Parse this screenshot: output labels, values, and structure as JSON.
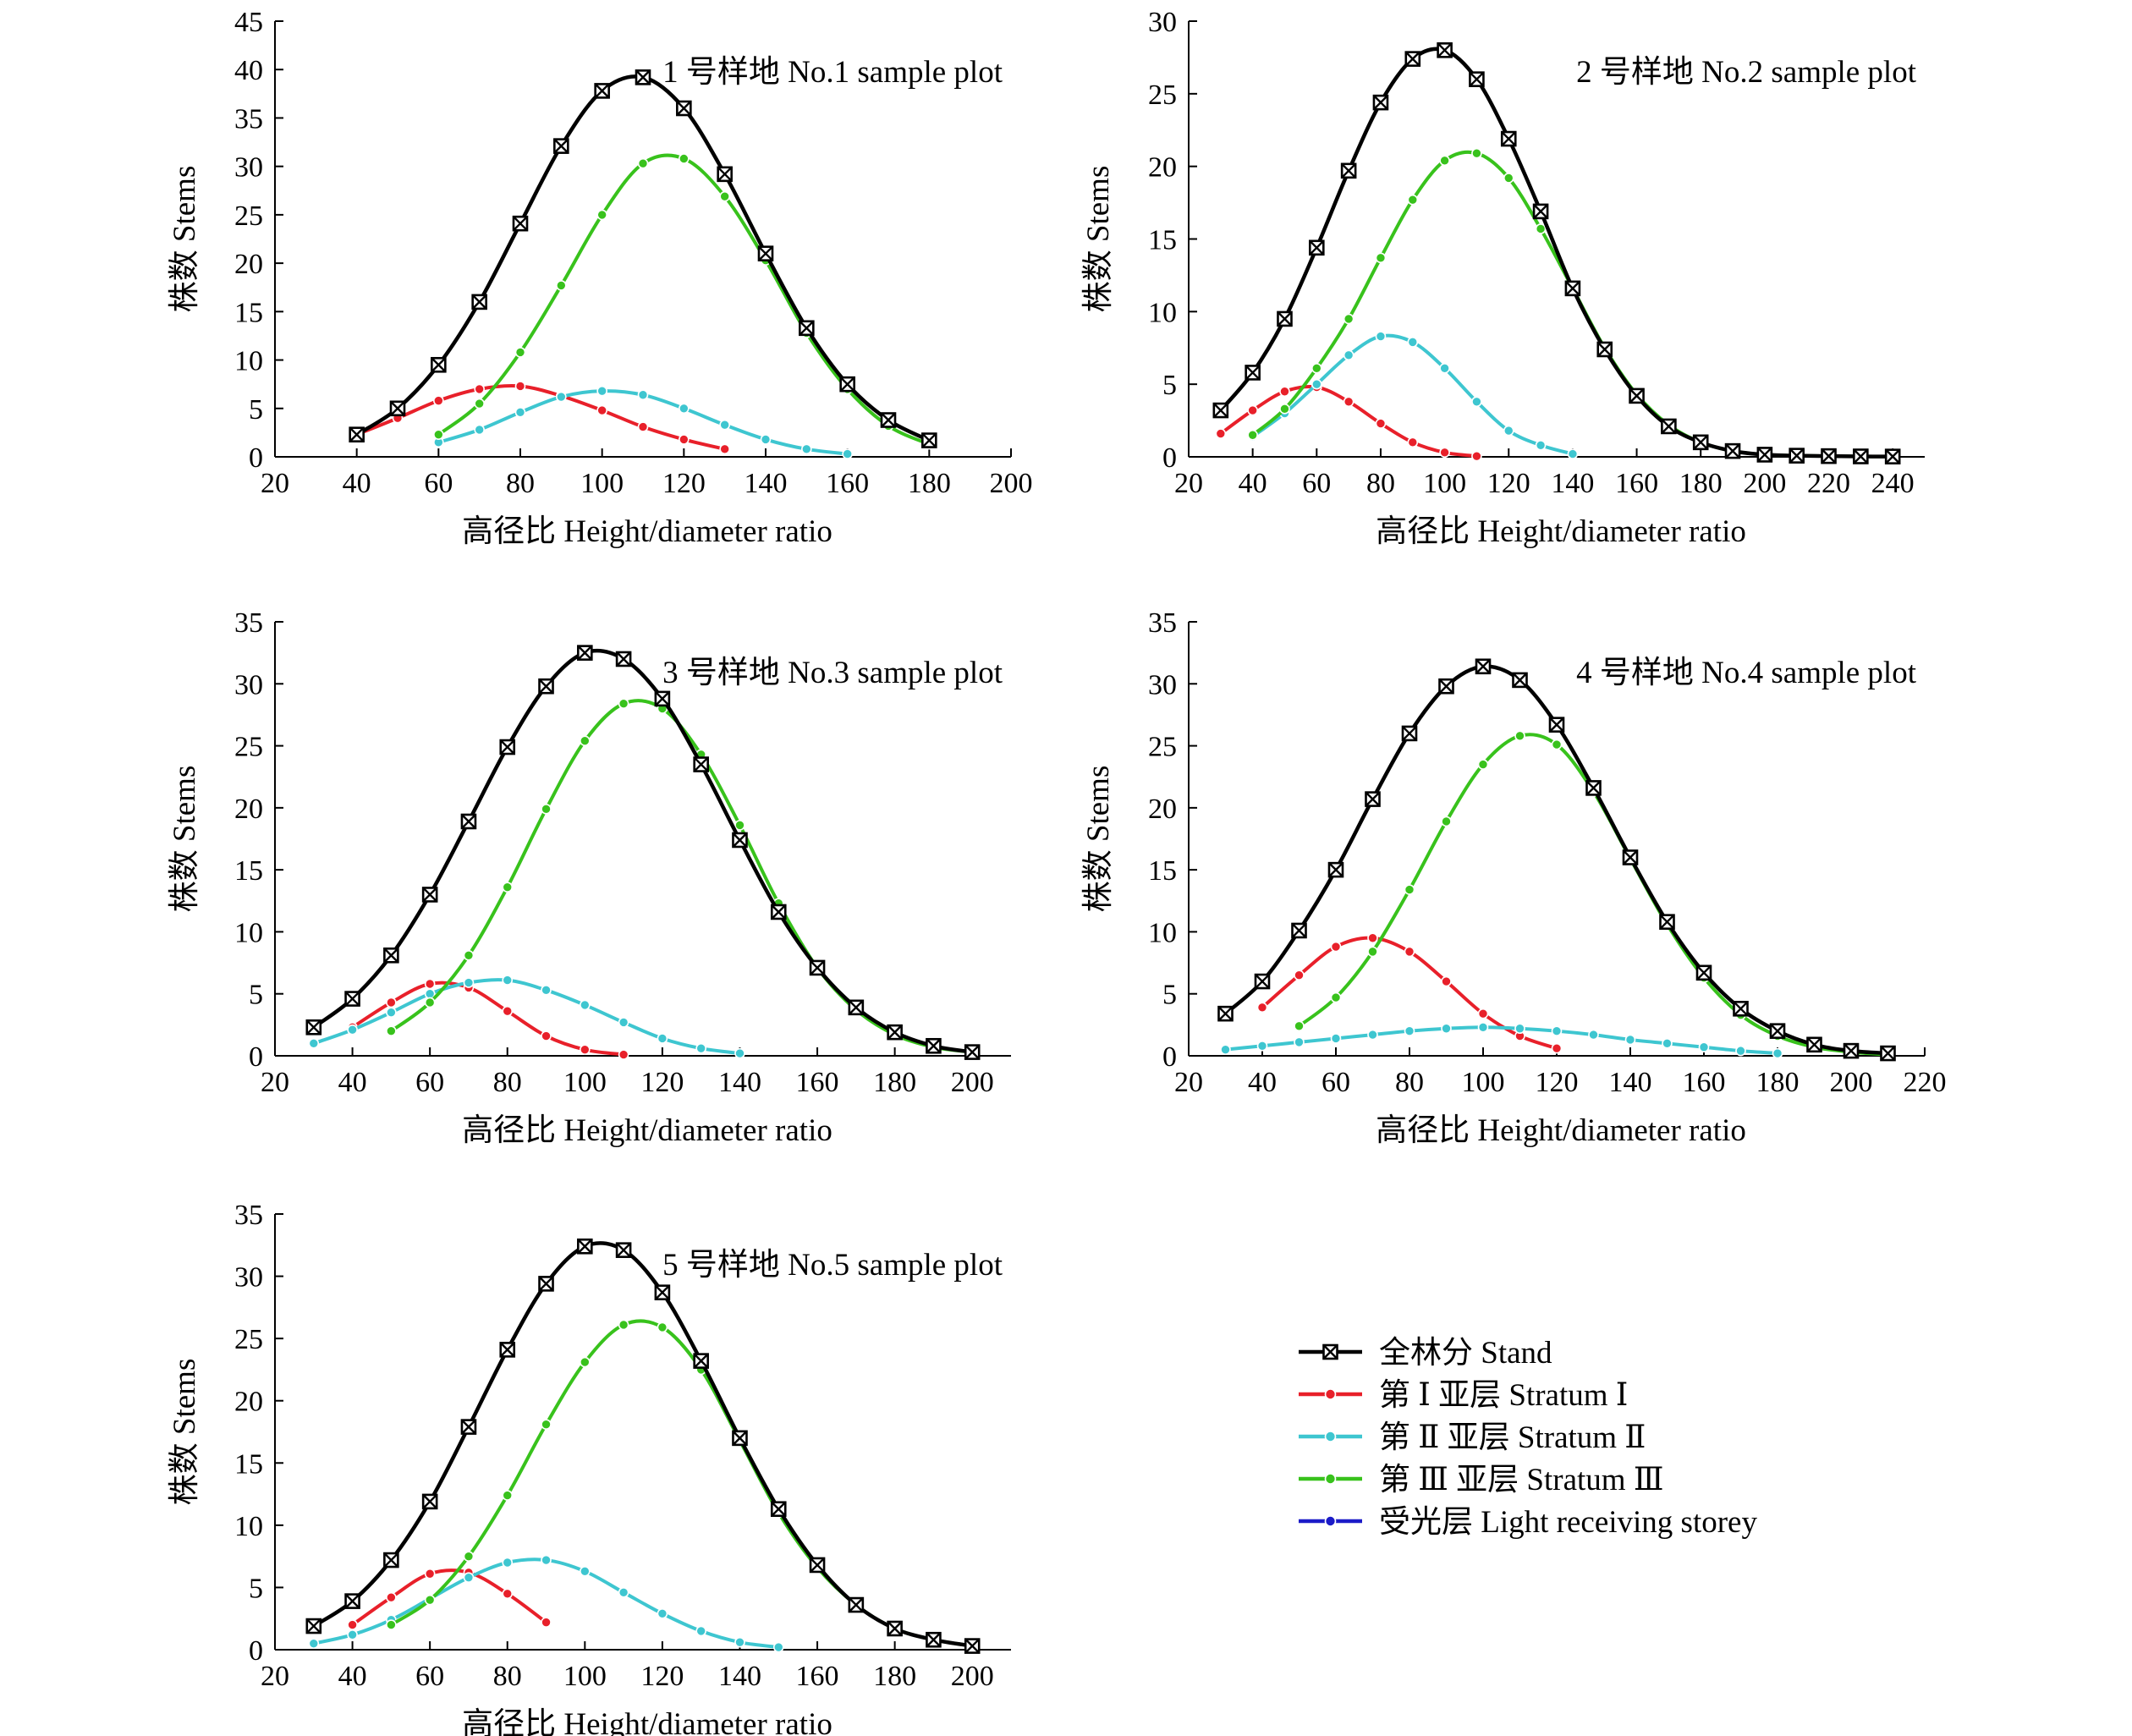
{
  "series_styles": [
    {
      "color": "#000000",
      "marker": "box-x"
    },
    {
      "color": "#e8202a",
      "marker": "dot"
    },
    {
      "color": "#3ec6d0",
      "marker": "dot"
    },
    {
      "color": "#38c21c",
      "marker": "dot"
    },
    {
      "color": "#1c1cc8",
      "marker": "dot"
    }
  ],
  "legend": {
    "placement": "bottom-right",
    "items": [
      "全林分 Stand",
      "第 Ⅰ 亚层 Stratum Ⅰ",
      "第 Ⅱ 亚层 Stratum Ⅱ",
      "第 Ⅲ 亚层 Stratum Ⅲ",
      "受光层 Light receiving storey"
    ]
  },
  "chart_data": [
    {
      "type": "line",
      "title": "1 号样地 No.1 sample plot",
      "xlabel": "高径比 Height/diameter ratio",
      "ylabel": "株数 Stems",
      "xlim": [
        20,
        200
      ],
      "ylim": [
        0,
        45
      ],
      "xticks": [
        20,
        40,
        60,
        80,
        100,
        120,
        140,
        160,
        180,
        200
      ],
      "yticks": [
        0,
        5,
        10,
        15,
        20,
        25,
        30,
        35,
        40,
        45
      ],
      "grid": false,
      "series": [
        {
          "x": [
            40,
            50,
            60,
            70,
            80,
            90,
            100,
            110,
            120,
            130,
            140,
            150,
            160,
            170,
            180
          ],
          "y": [
            2.3,
            5.0,
            9.5,
            16.0,
            24.1,
            32.1,
            37.8,
            39.2,
            36.0,
            29.2,
            21.0,
            13.3,
            7.5,
            3.8,
            1.7
          ]
        },
        {
          "x": [
            40,
            50,
            60,
            70,
            80,
            90,
            100,
            110,
            120,
            130
          ],
          "y": [
            2.3,
            4.0,
            5.8,
            7.0,
            7.3,
            6.3,
            4.8,
            3.1,
            1.8,
            0.8
          ]
        },
        {
          "x": [
            60,
            70,
            80,
            90,
            100,
            110,
            120,
            130,
            140,
            150,
            160
          ],
          "y": [
            1.5,
            2.8,
            4.6,
            6.2,
            6.8,
            6.4,
            5.0,
            3.3,
            1.8,
            0.8,
            0.3
          ]
        },
        {
          "x": [
            60,
            70,
            80,
            90,
            100,
            110,
            120,
            130,
            140,
            150,
            160,
            170,
            180
          ],
          "y": [
            2.3,
            5.5,
            10.8,
            17.7,
            25.0,
            30.3,
            30.8,
            26.9,
            20.3,
            12.8,
            7.0,
            3.2,
            1.3
          ]
        }
      ]
    },
    {
      "type": "line",
      "title": "2 号样地 No.2 sample plot",
      "xlabel": "高径比 Height/diameter ratio",
      "ylabel": "株数 Stems",
      "xlim": [
        20,
        250
      ],
      "ylim": [
        0,
        30
      ],
      "xticks": [
        20,
        40,
        60,
        80,
        100,
        120,
        140,
        160,
        180,
        200,
        220,
        240
      ],
      "yticks": [
        0,
        5,
        10,
        15,
        20,
        25,
        30
      ],
      "grid": false,
      "series": [
        {
          "x": [
            30,
            40,
            50,
            60,
            70,
            80,
            90,
            100,
            110,
            120,
            130,
            140,
            150,
            160,
            170,
            180,
            190,
            200,
            210,
            220,
            230,
            240
          ],
          "y": [
            3.2,
            5.8,
            9.5,
            14.4,
            19.7,
            24.4,
            27.4,
            28.0,
            26.0,
            21.9,
            16.9,
            11.6,
            7.4,
            4.2,
            2.1,
            1.0,
            0.4,
            0.15,
            0.08,
            0.05,
            0.03,
            0.02
          ]
        },
        {
          "x": [
            30,
            40,
            50,
            60,
            70,
            80,
            90,
            100,
            110
          ],
          "y": [
            1.6,
            3.2,
            4.5,
            4.8,
            3.8,
            2.3,
            1.0,
            0.3,
            0.05
          ]
        },
        {
          "x": [
            40,
            50,
            60,
            70,
            80,
            90,
            100,
            110,
            120,
            130,
            140
          ],
          "y": [
            1.4,
            3.0,
            5.0,
            7.0,
            8.3,
            7.9,
            6.1,
            3.8,
            1.8,
            0.8,
            0.2
          ]
        },
        {
          "x": [
            40,
            50,
            60,
            70,
            80,
            90,
            100,
            110,
            120,
            130,
            140,
            150,
            160,
            170,
            180,
            190,
            200,
            210,
            220,
            230,
            240
          ],
          "y": [
            1.5,
            3.3,
            6.1,
            9.5,
            13.7,
            17.7,
            20.4,
            20.9,
            19.2,
            15.7,
            11.6,
            7.5,
            4.3,
            2.2,
            1.0,
            0.4,
            0.15,
            0.08,
            0.05,
            0.03,
            0.02
          ]
        }
      ]
    },
    {
      "type": "line",
      "title": "3 号样地 No.3 sample plot",
      "xlabel": "高径比 Height/diameter ratio",
      "ylabel": "株数 Stems",
      "xlim": [
        20,
        210
      ],
      "ylim": [
        0,
        35
      ],
      "xticks": [
        20,
        40,
        60,
        80,
        100,
        120,
        140,
        160,
        180,
        200
      ],
      "yticks": [
        0,
        5,
        10,
        15,
        20,
        25,
        30,
        35
      ],
      "grid": false,
      "series": [
        {
          "x": [
            30,
            40,
            50,
            60,
            70,
            80,
            90,
            100,
            110,
            120,
            130,
            140,
            150,
            160,
            170,
            180,
            190,
            200
          ],
          "y": [
            2.3,
            4.6,
            8.1,
            13.0,
            18.9,
            24.9,
            29.8,
            32.5,
            32.0,
            28.8,
            23.5,
            17.4,
            11.6,
            7.1,
            3.9,
            1.9,
            0.8,
            0.3
          ]
        },
        {
          "x": [
            40,
            50,
            60,
            70,
            80,
            90,
            100,
            110
          ],
          "y": [
            2.3,
            4.3,
            5.8,
            5.5,
            3.6,
            1.6,
            0.5,
            0.1
          ]
        },
        {
          "x": [
            30,
            40,
            50,
            60,
            70,
            80,
            90,
            100,
            110,
            120,
            130,
            140
          ],
          "y": [
            1.0,
            2.1,
            3.5,
            5.0,
            5.9,
            6.1,
            5.3,
            4.1,
            2.7,
            1.4,
            0.6,
            0.2
          ]
        },
        {
          "x": [
            50,
            60,
            70,
            80,
            90,
            100,
            110,
            120,
            130,
            140,
            150,
            160,
            170,
            180,
            190,
            200
          ],
          "y": [
            2.0,
            4.3,
            8.1,
            13.6,
            19.9,
            25.4,
            28.4,
            28.0,
            24.3,
            18.6,
            12.3,
            7.1,
            3.7,
            1.7,
            0.7,
            0.3
          ]
        }
      ]
    },
    {
      "type": "line",
      "title": "4 号样地 No.4 sample plot",
      "xlabel": "高径比 Height/diameter ratio",
      "ylabel": "株数 Stems",
      "xlim": [
        20,
        220
      ],
      "ylim": [
        0,
        35
      ],
      "xticks": [
        20,
        40,
        60,
        80,
        100,
        120,
        140,
        160,
        180,
        200,
        220
      ],
      "yticks": [
        0,
        5,
        10,
        15,
        20,
        25,
        30,
        35
      ],
      "grid": false,
      "series": [
        {
          "x": [
            30,
            40,
            50,
            60,
            70,
            80,
            90,
            100,
            110,
            120,
            130,
            140,
            150,
            160,
            170,
            180,
            190,
            200,
            210
          ],
          "y": [
            3.4,
            6.0,
            10.1,
            15.0,
            20.7,
            26.0,
            29.8,
            31.4,
            30.3,
            26.7,
            21.6,
            16.0,
            10.8,
            6.7,
            3.8,
            2.0,
            0.9,
            0.4,
            0.2
          ]
        },
        {
          "x": [
            40,
            50,
            60,
            70,
            80,
            90,
            100,
            110,
            120
          ],
          "y": [
            3.9,
            6.5,
            8.8,
            9.5,
            8.4,
            6.0,
            3.4,
            1.6,
            0.6
          ]
        },
        {
          "x": [
            30,
            40,
            50,
            60,
            70,
            80,
            90,
            100,
            110,
            120,
            130,
            140,
            150,
            160,
            170,
            180
          ],
          "y": [
            0.5,
            0.8,
            1.1,
            1.4,
            1.7,
            2.0,
            2.2,
            2.3,
            2.2,
            2.0,
            1.7,
            1.3,
            1.0,
            0.7,
            0.4,
            0.2
          ]
        },
        {
          "x": [
            50,
            60,
            70,
            80,
            90,
            100,
            110,
            120,
            130,
            140,
            150,
            160,
            170,
            180,
            190,
            200,
            210
          ],
          "y": [
            2.4,
            4.7,
            8.4,
            13.4,
            18.9,
            23.5,
            25.8,
            25.1,
            21.3,
            15.9,
            10.6,
            6.3,
            3.3,
            1.6,
            0.7,
            0.3,
            0.1
          ]
        }
      ]
    },
    {
      "type": "line",
      "title": "5 号样地 No.5 sample plot",
      "xlabel": "高径比 Height/diameter ratio",
      "ylabel": "株数 Stems",
      "xlim": [
        20,
        210
      ],
      "ylim": [
        0,
        35
      ],
      "xticks": [
        20,
        40,
        60,
        80,
        100,
        120,
        140,
        160,
        180,
        200
      ],
      "yticks": [
        0,
        5,
        10,
        15,
        20,
        25,
        30,
        35
      ],
      "grid": false,
      "series": [
        {
          "x": [
            30,
            40,
            50,
            60,
            70,
            80,
            90,
            100,
            110,
            120,
            130,
            140,
            150,
            160,
            170,
            180,
            190,
            200
          ],
          "y": [
            1.9,
            3.9,
            7.2,
            11.9,
            17.9,
            24.1,
            29.4,
            32.4,
            32.1,
            28.7,
            23.2,
            17.0,
            11.3,
            6.8,
            3.6,
            1.7,
            0.8,
            0.3
          ]
        },
        {
          "x": [
            40,
            50,
            60,
            70,
            80,
            90
          ],
          "y": [
            2.0,
            4.2,
            6.1,
            6.2,
            4.5,
            2.2
          ]
        },
        {
          "x": [
            30,
            40,
            50,
            60,
            70,
            80,
            90,
            100,
            110,
            120,
            130,
            140,
            150
          ],
          "y": [
            0.5,
            1.2,
            2.4,
            4.1,
            5.8,
            7.0,
            7.2,
            6.3,
            4.6,
            2.9,
            1.5,
            0.6,
            0.2
          ]
        },
        {
          "x": [
            50,
            60,
            70,
            80,
            90,
            100,
            110,
            120,
            130,
            140,
            150,
            160,
            170,
            180,
            190,
            200
          ],
          "y": [
            2.0,
            4.0,
            7.5,
            12.4,
            18.1,
            23.1,
            26.1,
            25.9,
            22.5,
            16.8,
            11.0,
            6.6,
            3.6,
            1.7,
            0.8,
            0.3
          ]
        }
      ]
    }
  ]
}
